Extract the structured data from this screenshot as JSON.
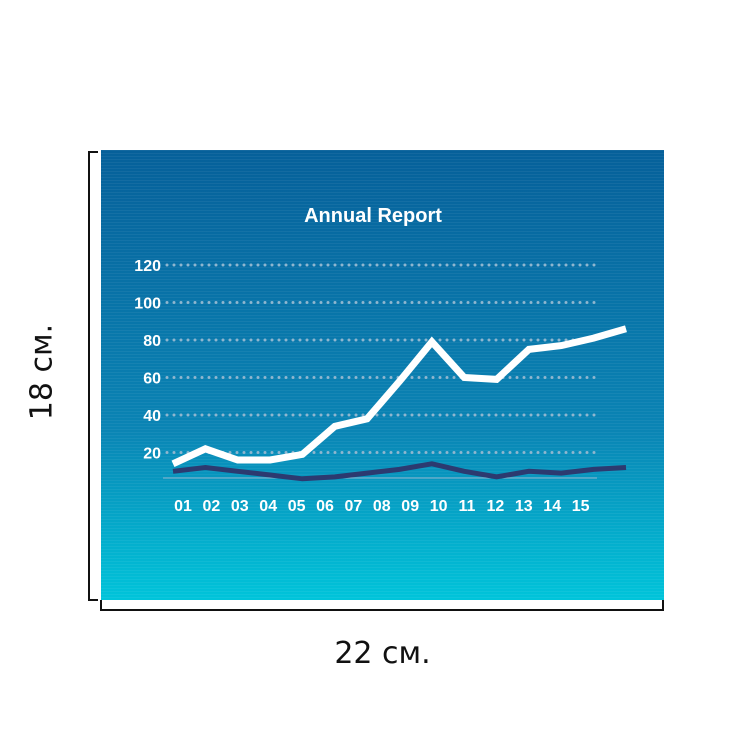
{
  "banner": {
    "colors": {
      "top": "#06609a",
      "bottom": "#00c4da",
      "primary_line": "#ffffff",
      "secondary_line": "#2c3a70",
      "grid": "#8fb6cf",
      "text": "#ffffff"
    }
  },
  "dimensions": {
    "width_label": "22 см.",
    "height_label": "18 см."
  },
  "chart_data": {
    "type": "line",
    "title": "Annual Report",
    "xlabel": "",
    "ylabel": "",
    "x_tick_labels": [
      "01",
      "02",
      "03",
      "04",
      "05",
      "06",
      "07",
      "08",
      "09",
      "10",
      "11",
      "12",
      "13",
      "14",
      "15"
    ],
    "y_tick_labels": [
      "20",
      "40",
      "60",
      "80",
      "100",
      "120"
    ],
    "y_ticks": [
      20,
      40,
      60,
      80,
      100,
      120
    ],
    "ylim": [
      0,
      125
    ],
    "grid": true,
    "grid_style": "dotted",
    "series": [
      {
        "values": [
          14,
          22,
          16,
          16,
          19,
          34,
          38,
          58,
          79,
          60,
          59,
          75,
          77,
          81,
          86
        ],
        "color": "#ffffff",
        "role": "primary"
      },
      {
        "values": [
          10,
          12,
          10,
          8,
          6,
          7,
          9,
          11,
          14,
          10,
          7,
          10,
          9,
          11,
          12
        ],
        "color": "#2c3a70",
        "role": "secondary"
      }
    ]
  }
}
